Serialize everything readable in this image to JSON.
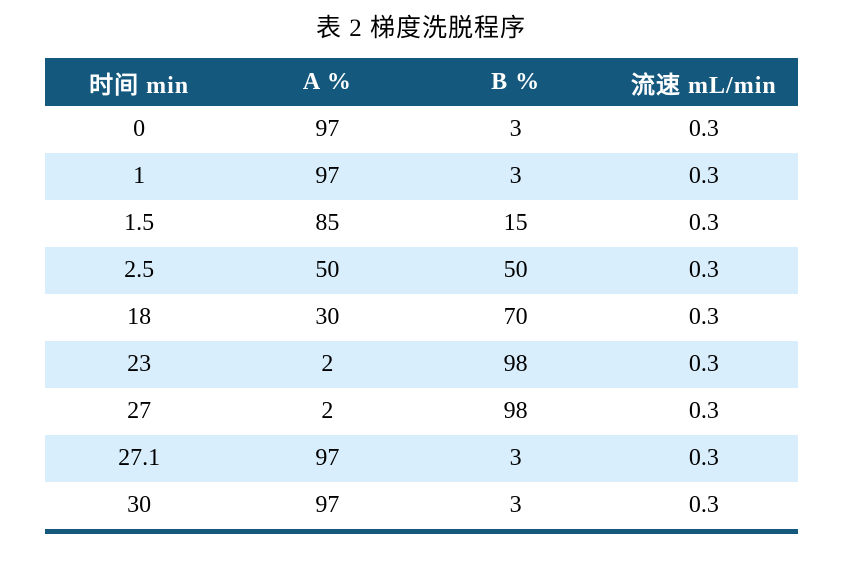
{
  "title": "表 2 梯度洗脱程序",
  "table": {
    "columns": [
      "时间  min",
      "A %",
      "B %",
      "流速  mL/min"
    ],
    "rows": [
      [
        "0",
        "97",
        "3",
        "0.3"
      ],
      [
        "1",
        "97",
        "3",
        "0.3"
      ],
      [
        "1.5",
        "85",
        "15",
        "0.3"
      ],
      [
        "2.5",
        "50",
        "50",
        "0.3"
      ],
      [
        "18",
        "30",
        "70",
        "0.3"
      ],
      [
        "23",
        "2",
        "98",
        "0.3"
      ],
      [
        "27",
        "2",
        "98",
        "0.3"
      ],
      [
        "27.1",
        "97",
        "3",
        "0.3"
      ],
      [
        "30",
        "97",
        "3",
        "0.3"
      ]
    ]
  },
  "colors": {
    "header_bg": "#14587e",
    "header_text": "#ffffff",
    "stripe_bg": "#d9eefc",
    "row_bg": "#ffffff",
    "bottom_border": "#14587e",
    "body_text": "#000000"
  }
}
